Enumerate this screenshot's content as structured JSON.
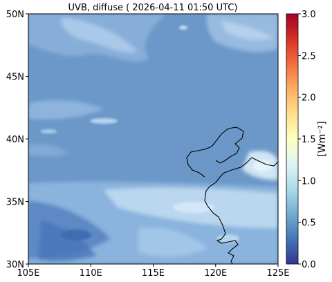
{
  "title": "UVB, diffuse ( 2026-04-11 01:50 UTC)",
  "map": {
    "lon_range": [
      105,
      125
    ],
    "lat_range": [
      30,
      50
    ],
    "x_ticks": [
      {
        "value": 105,
        "label": "105E"
      },
      {
        "value": 110,
        "label": "110E"
      },
      {
        "value": 115,
        "label": "115E"
      },
      {
        "value": 120,
        "label": "120E"
      },
      {
        "value": 125,
        "label": "125E"
      }
    ],
    "y_ticks": [
      {
        "value": 30,
        "label": "30N"
      },
      {
        "value": 35,
        "label": "35N"
      },
      {
        "value": 40,
        "label": "40N"
      },
      {
        "value": 45,
        "label": "45N"
      },
      {
        "value": 50,
        "label": "50N"
      }
    ],
    "background_value": 0.72,
    "coastline_color": "#000000"
  },
  "colorbar": {
    "label": "[Wm⁻²]",
    "range": [
      0.0,
      3.0
    ],
    "colormap": "RdYlBu_r",
    "ticks": [
      {
        "value": 0.0,
        "label": "0.0"
      },
      {
        "value": 0.5,
        "label": "0.5"
      },
      {
        "value": 1.0,
        "label": "1.0"
      },
      {
        "value": 1.5,
        "label": "1.5"
      },
      {
        "value": 2.0,
        "label": "2.0"
      },
      {
        "value": 2.5,
        "label": "2.5"
      },
      {
        "value": 3.0,
        "label": "3.0"
      }
    ]
  }
}
